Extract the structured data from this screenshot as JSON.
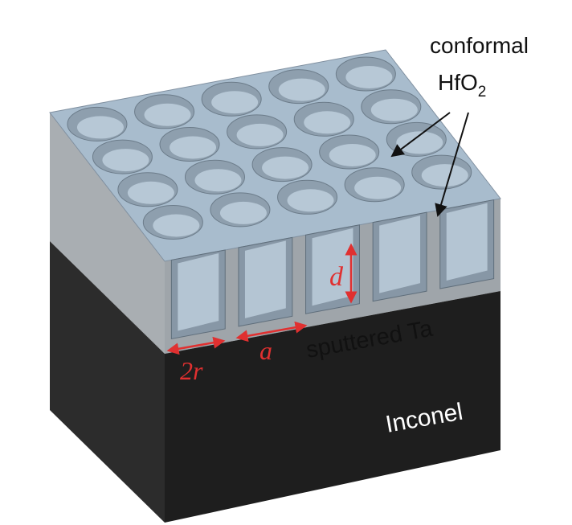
{
  "labels": {
    "conformal": "conformal",
    "hfo2": {
      "base": "HfO",
      "subscript": "2"
    },
    "tantalum_layer": "sputtered Ta",
    "substrate": "Inconel",
    "depth": "d",
    "diameter": "2r",
    "period": "a"
  }
}
